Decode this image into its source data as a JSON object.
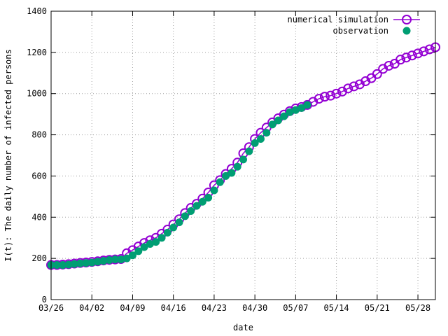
{
  "chart_data": {
    "type": "scatter",
    "title": "",
    "xlabel": "date",
    "ylabel": "I(t): The daily number of infected persons",
    "xlim": [
      "2020-03-26",
      "2020-05-31"
    ],
    "ylim": [
      0,
      1400
    ],
    "yticks": [
      0,
      200,
      400,
      600,
      800,
      1000,
      1200,
      1400
    ],
    "xticks": [
      {
        "date": "2020-03-26",
        "label": "03/26"
      },
      {
        "date": "2020-04-02",
        "label": "04/02"
      },
      {
        "date": "2020-04-09",
        "label": "04/09"
      },
      {
        "date": "2020-04-16",
        "label": "04/16"
      },
      {
        "date": "2020-04-23",
        "label": "04/23"
      },
      {
        "date": "2020-04-30",
        "label": "04/30"
      },
      {
        "date": "2020-05-07",
        "label": "05/07"
      },
      {
        "date": "2020-05-14",
        "label": "05/14"
      },
      {
        "date": "2020-05-21",
        "label": "05/21"
      },
      {
        "date": "2020-05-28",
        "label": "05/28"
      }
    ],
    "grid": true,
    "legend_position": "top-right",
    "series": [
      {
        "name": "numerical simulation",
        "color": "#9400d3",
        "marker": "open-circle-line",
        "x": [
          "2020-03-26",
          "2020-03-27",
          "2020-03-28",
          "2020-03-29",
          "2020-03-30",
          "2020-03-31",
          "2020-04-01",
          "2020-04-02",
          "2020-04-03",
          "2020-04-04",
          "2020-04-05",
          "2020-04-06",
          "2020-04-07",
          "2020-04-08",
          "2020-04-09",
          "2020-04-10",
          "2020-04-11",
          "2020-04-12",
          "2020-04-13",
          "2020-04-14",
          "2020-04-15",
          "2020-04-16",
          "2020-04-17",
          "2020-04-18",
          "2020-04-19",
          "2020-04-20",
          "2020-04-21",
          "2020-04-22",
          "2020-04-23",
          "2020-04-24",
          "2020-04-25",
          "2020-04-26",
          "2020-04-27",
          "2020-04-28",
          "2020-04-29",
          "2020-04-30",
          "2020-05-01",
          "2020-05-02",
          "2020-05-03",
          "2020-05-04",
          "2020-05-05",
          "2020-05-06",
          "2020-05-07",
          "2020-05-08",
          "2020-05-09",
          "2020-05-10",
          "2020-05-11",
          "2020-05-12",
          "2020-05-13",
          "2020-05-14",
          "2020-05-15",
          "2020-05-16",
          "2020-05-17",
          "2020-05-18",
          "2020-05-19",
          "2020-05-20",
          "2020-05-21",
          "2020-05-22",
          "2020-05-23",
          "2020-05-24",
          "2020-05-25",
          "2020-05-26",
          "2020-05-27",
          "2020-05-28",
          "2020-05-29",
          "2020-05-30",
          "2020-05-31"
        ],
        "y": [
          168,
          168,
          170,
          172,
          175,
          178,
          180,
          183,
          186,
          190,
          193,
          195,
          197,
          225,
          240,
          258,
          275,
          288,
          300,
          320,
          340,
          365,
          390,
          420,
          445,
          465,
          490,
          520,
          555,
          580,
          610,
          635,
          665,
          710,
          740,
          780,
          810,
          835,
          860,
          880,
          898,
          915,
          928,
          935,
          945,
          960,
          975,
          985,
          990,
          1000,
          1010,
          1025,
          1035,
          1045,
          1060,
          1075,
          1095,
          1120,
          1135,
          1145,
          1165,
          1175,
          1185,
          1195,
          1205,
          1215,
          1225
        ]
      },
      {
        "name": "observation",
        "color": "#009e73",
        "marker": "filled-circle",
        "x": [
          "2020-03-26",
          "2020-03-27",
          "2020-03-28",
          "2020-03-29",
          "2020-03-30",
          "2020-03-31",
          "2020-04-01",
          "2020-04-02",
          "2020-04-03",
          "2020-04-04",
          "2020-04-05",
          "2020-04-06",
          "2020-04-07",
          "2020-04-08",
          "2020-04-09",
          "2020-04-10",
          "2020-04-11",
          "2020-04-12",
          "2020-04-13",
          "2020-04-14",
          "2020-04-15",
          "2020-04-16",
          "2020-04-17",
          "2020-04-18",
          "2020-04-19",
          "2020-04-20",
          "2020-04-21",
          "2020-04-22",
          "2020-04-23",
          "2020-04-24",
          "2020-04-25",
          "2020-04-26",
          "2020-04-27",
          "2020-04-28",
          "2020-04-29",
          "2020-04-30",
          "2020-05-01",
          "2020-05-02",
          "2020-05-03",
          "2020-05-04",
          "2020-05-05",
          "2020-05-06",
          "2020-05-07",
          "2020-05-08",
          "2020-05-09"
        ],
        "y": [
          168,
          168,
          168,
          170,
          173,
          176,
          178,
          180,
          184,
          188,
          192,
          195,
          195,
          200,
          215,
          235,
          255,
          270,
          280,
          300,
          325,
          350,
          375,
          405,
          430,
          455,
          475,
          495,
          530,
          570,
          600,
          615,
          645,
          680,
          720,
          760,
          780,
          810,
          850,
          870,
          890,
          910,
          920,
          930,
          945
        ]
      }
    ]
  }
}
